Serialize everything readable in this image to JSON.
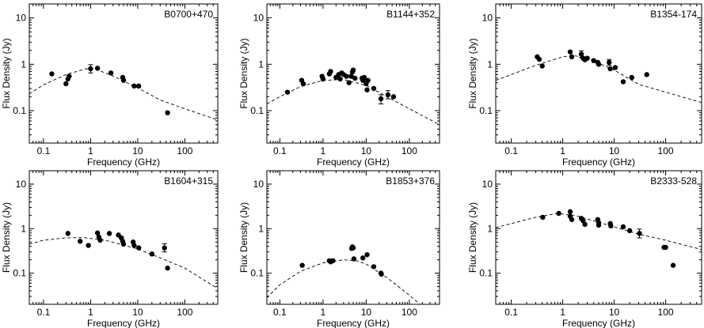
{
  "figure": {
    "panels_layout": "2 rows x 3 columns",
    "shared_axes": {
      "xlabel": "Frequency (GHz)",
      "ylabel": "Flux Density (Jy)",
      "x_scale": "log",
      "y_scale": "log",
      "xlim": [
        0.05,
        500
      ],
      "ylim": [
        0.02,
        20
      ],
      "x_ticks": [
        "0.1",
        "1",
        "10",
        "100"
      ],
      "y_ticks": [
        "0.1",
        "1",
        "10"
      ]
    }
  },
  "chart_data": [
    {
      "type": "scatter",
      "title": "B0700+470",
      "xlabel": "Frequency (GHz)",
      "ylabel": "Flux Density (Jy)",
      "x_scale": "log",
      "y_scale": "log",
      "xlim": [
        0.05,
        500
      ],
      "ylim": [
        0.02,
        20
      ],
      "x_ticks": [
        "0.1",
        "1",
        "10",
        "100"
      ],
      "y_ticks": [
        "0.1",
        "1",
        "10"
      ],
      "grid": false,
      "series": [
        {
          "points": [
            [
              0.15,
              0.62
            ],
            [
              0.3,
              0.38
            ],
            [
              0.33,
              0.48
            ],
            [
              0.35,
              0.55
            ],
            [
              1.0,
              0.8
            ],
            [
              1.4,
              0.82
            ],
            [
              2.7,
              0.65
            ],
            [
              4.8,
              0.52
            ],
            [
              5.0,
              0.45
            ],
            [
              8.4,
              0.34
            ],
            [
              10.5,
              0.34
            ],
            [
              43,
              0.09
            ]
          ],
          "error_bars": [
            [
              1.0,
              0.8,
              0.65,
              0.98
            ]
          ]
        }
      ],
      "fit_curve": [
        [
          0.05,
          0.23
        ],
        [
          0.1,
          0.36
        ],
        [
          0.3,
          0.6
        ],
        [
          0.8,
          0.8
        ],
        [
          1.3,
          0.78
        ],
        [
          3,
          0.56
        ],
        [
          10,
          0.31
        ],
        [
          30,
          0.17
        ],
        [
          100,
          0.11
        ],
        [
          500,
          0.063
        ]
      ]
    },
    {
      "type": "scatter",
      "title": "B1144+352",
      "xlabel": "Frequency (GHz)",
      "ylabel": "Flux Density (Jy)",
      "x_scale": "log",
      "y_scale": "log",
      "xlim": [
        0.05,
        500
      ],
      "ylim": [
        0.02,
        20
      ],
      "x_ticks": [
        "0.1",
        "1",
        "10",
        "100"
      ],
      "y_ticks": [
        "0.1",
        "1",
        "10"
      ],
      "grid": false,
      "series": [
        {
          "points": [
            [
              0.15,
              0.25
            ],
            [
              0.32,
              0.45
            ],
            [
              0.35,
              0.38
            ],
            [
              0.95,
              0.55
            ],
            [
              1.0,
              0.48
            ],
            [
              1.4,
              0.62
            ],
            [
              1.5,
              0.7
            ],
            [
              2.0,
              0.52
            ],
            [
              2.3,
              0.6
            ],
            [
              2.5,
              0.48
            ],
            [
              2.7,
              0.65
            ],
            [
              3.0,
              0.6
            ],
            [
              3.5,
              0.55
            ],
            [
              4.0,
              0.4
            ],
            [
              4.5,
              0.55
            ],
            [
              4.8,
              0.68
            ],
            [
              5.0,
              0.75
            ],
            [
              5.5,
              0.5
            ],
            [
              8.0,
              0.5
            ],
            [
              8.4,
              0.45
            ],
            [
              9.0,
              0.52
            ],
            [
              10.0,
              0.38
            ],
            [
              10.5,
              0.28
            ],
            [
              11.0,
              0.45
            ],
            [
              15.0,
              0.3
            ],
            [
              22.0,
              0.18
            ],
            [
              32.0,
              0.22
            ],
            [
              43.0,
              0.2
            ]
          ],
          "error_bars": [
            [
              22.0,
              0.18,
              0.14,
              0.22
            ],
            [
              32.0,
              0.22,
              0.18,
              0.27
            ]
          ]
        }
      ],
      "fit_curve": [
        [
          0.05,
          0.14
        ],
        [
          0.1,
          0.2
        ],
        [
          0.3,
          0.33
        ],
        [
          1,
          0.45
        ],
        [
          3,
          0.47
        ],
        [
          10,
          0.35
        ],
        [
          30,
          0.2
        ],
        [
          100,
          0.11
        ],
        [
          500,
          0.05
        ]
      ]
    },
    {
      "type": "scatter",
      "title": "B1354-174",
      "xlabel": "Frequency (GHz)",
      "ylabel": "Flux Density (Jy)",
      "x_scale": "log",
      "y_scale": "log",
      "xlim": [
        0.05,
        500
      ],
      "ylim": [
        0.02,
        20
      ],
      "x_ticks": [
        "0.1",
        "1",
        "10",
        "100"
      ],
      "y_ticks": [
        "0.1",
        "1",
        "10"
      ],
      "grid": false,
      "series": [
        {
          "points": [
            [
              0.32,
              1.45
            ],
            [
              0.35,
              1.28
            ],
            [
              0.4,
              0.92
            ],
            [
              1.4,
              1.85
            ],
            [
              1.5,
              1.45
            ],
            [
              2.3,
              1.65
            ],
            [
              2.5,
              1.35
            ],
            [
              2.7,
              1.25
            ],
            [
              3.0,
              1.35
            ],
            [
              4.0,
              1.2
            ],
            [
              4.8,
              1.1
            ],
            [
              5.0,
              1.0
            ],
            [
              8.0,
              1.1
            ],
            [
              8.4,
              0.8
            ],
            [
              10.5,
              0.85
            ],
            [
              15.0,
              0.42
            ],
            [
              22.0,
              0.52
            ],
            [
              43.0,
              0.6
            ]
          ],
          "error_bars": [
            [
              2.3,
              1.65,
              1.4,
              1.95
            ],
            [
              8.0,
              1.1,
              0.95,
              1.27
            ]
          ]
        }
      ],
      "fit_curve": [
        [
          0.05,
          0.45
        ],
        [
          0.1,
          0.6
        ],
        [
          0.3,
          0.95
        ],
        [
          1,
          1.45
        ],
        [
          1.6,
          1.55
        ],
        [
          3,
          1.35
        ],
        [
          10,
          0.75
        ],
        [
          30,
          0.37
        ],
        [
          100,
          0.25
        ],
        [
          500,
          0.15
        ]
      ]
    },
    {
      "type": "scatter",
      "title": "B1604+315",
      "xlabel": "Frequency (GHz)",
      "ylabel": "Flux Density (Jy)",
      "x_scale": "log",
      "y_scale": "log",
      "xlim": [
        0.05,
        500
      ],
      "ylim": [
        0.02,
        20
      ],
      "x_ticks": [
        "0.1",
        "1",
        "10",
        "100"
      ],
      "y_ticks": [
        "0.1",
        "1",
        "10"
      ],
      "grid": false,
      "series": [
        {
          "points": [
            [
              0.33,
              0.78
            ],
            [
              0.6,
              0.52
            ],
            [
              0.9,
              0.42
            ],
            [
              1.4,
              0.8
            ],
            [
              1.5,
              0.65
            ],
            [
              1.6,
              0.55
            ],
            [
              2.5,
              0.78
            ],
            [
              3.9,
              0.72
            ],
            [
              4.5,
              0.62
            ],
            [
              4.8,
              0.52
            ],
            [
              5.0,
              0.45
            ],
            [
              8.0,
              0.5
            ],
            [
              8.4,
              0.42
            ],
            [
              10.5,
              0.37
            ],
            [
              20.0,
              0.27
            ],
            [
              37.0,
              0.37
            ],
            [
              43.0,
              0.13
            ]
          ],
          "error_bars": [
            [
              37.0,
              0.37,
              0.3,
              0.46
            ]
          ]
        }
      ],
      "fit_curve": [
        [
          0.05,
          0.45
        ],
        [
          0.1,
          0.55
        ],
        [
          0.3,
          0.62
        ],
        [
          0.7,
          0.63
        ],
        [
          2,
          0.55
        ],
        [
          10,
          0.35
        ],
        [
          30,
          0.22
        ],
        [
          100,
          0.13
        ],
        [
          500,
          0.045
        ]
      ]
    },
    {
      "type": "scatter",
      "title": "B1853+376",
      "xlabel": "Frequency (GHz)",
      "ylabel": "Flux Density (Jy)",
      "x_scale": "log",
      "y_scale": "log",
      "xlim": [
        0.05,
        500
      ],
      "ylim": [
        0.02,
        20
      ],
      "x_ticks": [
        "0.1",
        "1",
        "10",
        "100"
      ],
      "y_ticks": [
        "0.1",
        "1",
        "10"
      ],
      "grid": false,
      "series": [
        {
          "points": [
            [
              0.33,
              0.15
            ],
            [
              1.4,
              0.19
            ],
            [
              1.5,
              0.18
            ],
            [
              1.7,
              0.19
            ],
            [
              4.6,
              0.36
            ],
            [
              4.8,
              0.39
            ],
            [
              5.0,
              0.37
            ],
            [
              5.2,
              0.21
            ],
            [
              8.4,
              0.22
            ],
            [
              10.5,
              0.26
            ],
            [
              15.0,
              0.14
            ],
            [
              22.0,
              0.1
            ],
            [
              22.5,
              0.095
            ]
          ]
        }
      ],
      "fit_curve": [
        [
          0.05,
          0.028
        ],
        [
          0.1,
          0.055
        ],
        [
          0.3,
          0.11
        ],
        [
          1,
          0.17
        ],
        [
          3,
          0.2
        ],
        [
          6,
          0.19
        ],
        [
          10,
          0.16
        ],
        [
          30,
          0.08
        ],
        [
          100,
          0.032
        ],
        [
          200,
          0.018
        ]
      ]
    },
    {
      "type": "scatter",
      "title": "B2333-528",
      "xlabel": "Frequency (GHz)",
      "ylabel": "Flux Density (Jy)",
      "x_scale": "log",
      "y_scale": "log",
      "xlim": [
        0.05,
        500
      ],
      "ylim": [
        0.02,
        20
      ],
      "x_ticks": [
        "0.1",
        "1",
        "10",
        "100"
      ],
      "y_ticks": [
        "0.1",
        "1",
        "10"
      ],
      "grid": false,
      "series": [
        {
          "points": [
            [
              0.41,
              1.8
            ],
            [
              0.84,
              2.2
            ],
            [
              1.4,
              2.4
            ],
            [
              1.4,
              1.9
            ],
            [
              1.5,
              1.6
            ],
            [
              2.3,
              1.7
            ],
            [
              2.5,
              1.5
            ],
            [
              2.7,
              1.25
            ],
            [
              4.8,
              1.6
            ],
            [
              5.0,
              1.35
            ],
            [
              5.0,
              1.2
            ],
            [
              8.4,
              1.3
            ],
            [
              8.6,
              1.15
            ],
            [
              15.0,
              1.1
            ],
            [
              20.0,
              0.9
            ],
            [
              31.0,
              0.78
            ],
            [
              93.0,
              0.38
            ],
            [
              100.0,
              0.38
            ],
            [
              140.0,
              0.15
            ]
          ],
          "error_bars": [
            [
              31.0,
              0.78,
              0.62,
              0.98
            ]
          ]
        }
      ],
      "fit_curve": [
        [
          0.05,
          1.05
        ],
        [
          0.1,
          1.3
        ],
        [
          0.3,
          1.8
        ],
        [
          0.8,
          2.2
        ],
        [
          2,
          1.9
        ],
        [
          10,
          1.1
        ],
        [
          30,
          0.75
        ],
        [
          100,
          0.55
        ],
        [
          500,
          0.34
        ]
      ]
    }
  ]
}
